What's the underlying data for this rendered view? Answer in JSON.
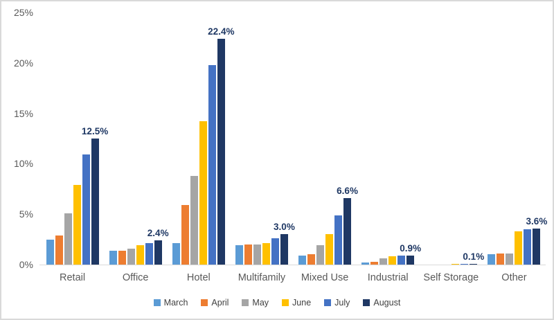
{
  "chart_data": {
    "type": "bar",
    "title": "",
    "xlabel": "",
    "ylabel": "",
    "ylim": [
      0,
      25
    ],
    "grid": false,
    "legend_position": "bottom",
    "y_ticks": [
      "0%",
      "5%",
      "10%",
      "15%",
      "20%",
      "25%"
    ],
    "y_tick_values": [
      0,
      5,
      10,
      15,
      20,
      25
    ],
    "categories": [
      "Retail",
      "Office",
      "Hotel",
      "Multifamily",
      "Mixed Use",
      "Industrial",
      "Self Storage",
      "Other"
    ],
    "series": [
      {
        "name": "March",
        "color": "#5b9bd5",
        "values": [
          2.5,
          1.4,
          2.1,
          1.9,
          0.9,
          0.2,
          0.0,
          1.0
        ]
      },
      {
        "name": "April",
        "color": "#ed7d31",
        "values": [
          2.9,
          1.4,
          5.9,
          2.0,
          1.0,
          0.3,
          0.0,
          1.1
        ]
      },
      {
        "name": "May",
        "color": "#a5a5a5",
        "values": [
          5.1,
          1.6,
          8.8,
          2.0,
          1.9,
          0.6,
          0.0,
          1.1
        ]
      },
      {
        "name": "June",
        "color": "#ffc000",
        "values": [
          7.9,
          1.9,
          14.2,
          2.1,
          3.0,
          0.8,
          0.1,
          3.3
        ]
      },
      {
        "name": "July",
        "color": "#4472c4",
        "values": [
          10.9,
          2.1,
          19.8,
          2.6,
          4.9,
          0.9,
          0.1,
          3.5
        ]
      },
      {
        "name": "August",
        "color": "#1f3864",
        "values": [
          12.5,
          2.4,
          22.4,
          3.0,
          6.6,
          0.9,
          0.1,
          3.6
        ]
      }
    ],
    "data_labels": {
      "series": "August",
      "labels": [
        "12.5%",
        "2.4%",
        "22.4%",
        "3.0%",
        "6.6%",
        "0.9%",
        "0.1%",
        "3.6%"
      ],
      "color": "#1f3864"
    },
    "colors": {
      "axis_text": "#595959",
      "axis_line": "#d9d9d9",
      "background": "#ffffff",
      "frame_border": "#d9d9d9"
    }
  }
}
